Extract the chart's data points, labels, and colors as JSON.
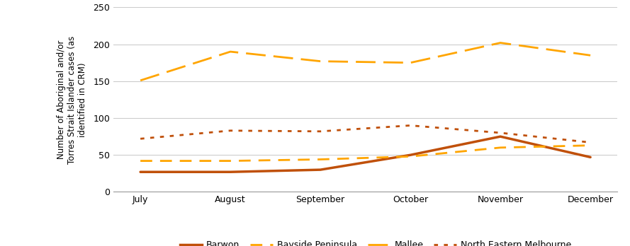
{
  "months": [
    "July",
    "August",
    "September",
    "October",
    "November",
    "December"
  ],
  "series": {
    "Barwon": {
      "values": [
        27,
        27,
        30,
        50,
        75,
        47
      ],
      "color": "#C0500A",
      "linewidth": 2.5,
      "dashes": null
    },
    "Bayside Peninsula": {
      "values": [
        42,
        42,
        44,
        48,
        60,
        63
      ],
      "color": "#FFA500",
      "linewidth": 2.0,
      "dashes": [
        6,
        4
      ]
    },
    "Mallee": {
      "values": [
        151,
        190,
        177,
        175,
        202,
        185
      ],
      "color": "#FFA500",
      "linewidth": 2.0,
      "dashes": [
        10,
        4
      ]
    },
    "North Eastern Melbourne": {
      "values": [
        72,
        83,
        82,
        90,
        80,
        67
      ],
      "color": "#C0500A",
      "linewidth": 2.0,
      "dashes": [
        2,
        3
      ]
    }
  },
  "ylabel": "Number of Aboriginal and/or\nTorres Strait Islander cases (as\nidentified in CRM)",
  "ylim": [
    0,
    250
  ],
  "yticks": [
    0,
    50,
    100,
    150,
    200,
    250
  ],
  "background_color": "#ffffff",
  "grid_color": "#cccccc"
}
